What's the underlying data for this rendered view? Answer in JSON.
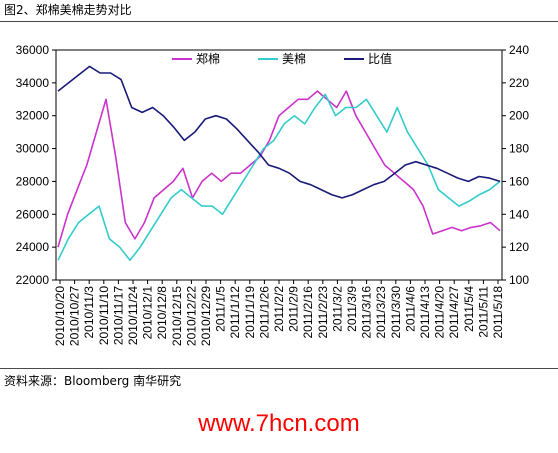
{
  "figure_title": "图2、郑棉美棉走势对比",
  "source": "资料来源：Bloomberg  南华研究",
  "watermark": "www.7hcn.com",
  "colors": {
    "zhengmian": "#cc33cc",
    "meimian": "#33cccc",
    "bizhi": "#1a1a7a"
  },
  "chart_data": {
    "type": "line",
    "title": "",
    "legend": {
      "placement": "top-center",
      "entries": [
        "郑棉",
        "美棉",
        "比值"
      ]
    },
    "grid": false,
    "x_tick_labels": [
      "2010/10/20",
      "2010/10/27",
      "2010/11/3",
      "2010/11/10",
      "2010/11/17",
      "2010/11/24",
      "2010/12/1",
      "2010/12/8",
      "2010/12/15",
      "2010/12/22",
      "2010/12/29",
      "2011/1/5",
      "2011/1/12",
      "2011/1/19",
      "2011/1/26",
      "2011/2/2",
      "2011/2/9",
      "2011/2/16",
      "2011/2/23",
      "2011/3/2",
      "2011/3/9",
      "2011/3/16",
      "2011/3/23",
      "2011/3/30",
      "2011/4/6",
      "2011/4/13",
      "2011/4/20",
      "2011/4/27",
      "2011/5/4",
      "2011/5/11",
      "2011/5/18"
    ],
    "y_left": {
      "min": 22000,
      "max": 36000,
      "ticks": [
        22000,
        24000,
        26000,
        28000,
        30000,
        32000,
        34000,
        36000
      ]
    },
    "y_right": {
      "min": 100,
      "max": 240,
      "ticks": [
        100,
        120,
        140,
        160,
        180,
        200,
        220,
        240
      ]
    },
    "series": [
      {
        "name": "郑棉",
        "axis": "left",
        "values": [
          24000,
          26000,
          27500,
          29000,
          31000,
          33000,
          29500,
          25500,
          24500,
          25500,
          27000,
          27500,
          28000,
          28800,
          27000,
          28000,
          28500,
          28000,
          28500,
          28500,
          29000,
          29500,
          30500,
          32000,
          32500,
          33000,
          33000,
          33500,
          33000,
          32500,
          33500,
          32000,
          31000,
          30000,
          29000,
          28500,
          28000,
          27500,
          26500,
          24800,
          25000,
          25200,
          25000,
          25200,
          25300,
          25500,
          25000
        ]
      },
      {
        "name": "美棉",
        "axis": "left",
        "values": [
          23200,
          24500,
          25500,
          26000,
          26500,
          24500,
          24000,
          23200,
          24000,
          25000,
          26000,
          27000,
          27500,
          27000,
          26500,
          26500,
          26000,
          27000,
          28000,
          29000,
          30000,
          30500,
          31500,
          32000,
          31500,
          32500,
          33300,
          32000,
          32500,
          32500,
          33000,
          32000,
          31000,
          32500,
          31000,
          30000,
          29000,
          27500,
          27000,
          26500,
          26800,
          27200,
          27500,
          28000
        ]
      },
      {
        "name": "比值",
        "axis": "right",
        "values": [
          215,
          220,
          225,
          230,
          226,
          226,
          222,
          205,
          202,
          205,
          200,
          193,
          185,
          190,
          198,
          200,
          198,
          192,
          185,
          178,
          170,
          168,
          165,
          160,
          158,
          155,
          152,
          150,
          152,
          155,
          158,
          160,
          165,
          170,
          172,
          170,
          168,
          165,
          162,
          160,
          163,
          162,
          160
        ]
      }
    ]
  }
}
